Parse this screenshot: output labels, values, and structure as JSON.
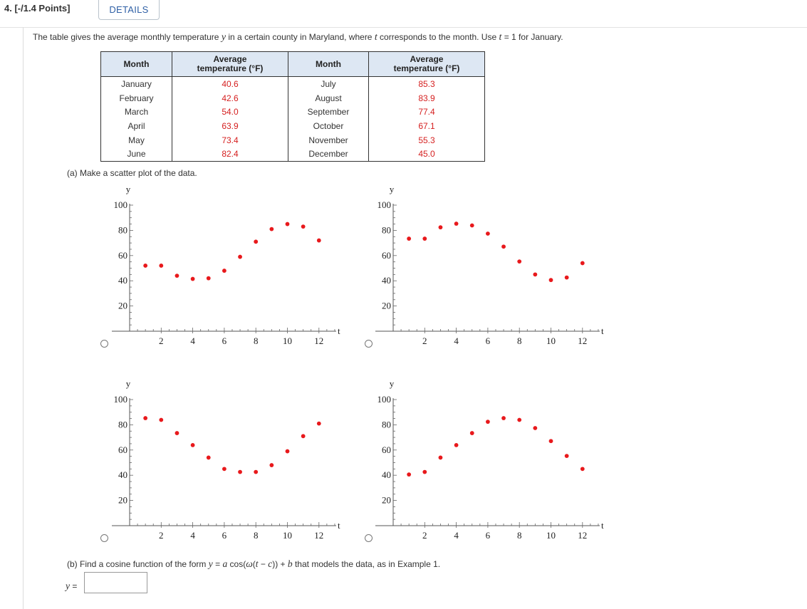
{
  "question": {
    "number_points": "4. [-/1.4 Points]",
    "details_label": "DETAILS",
    "intro_before_y": "The table gives the average monthly temperature ",
    "intro_var_y": "y",
    "intro_middle": " in a certain county in Maryland, where ",
    "intro_var_t": "t",
    "intro_after_t": " corresponds to the month. Use ",
    "intro_t_eq": "t",
    "intro_tail": " = 1  for January."
  },
  "table": {
    "headers": [
      "Month",
      "Average temperature (°F)",
      "Month",
      "Average temperature (°F)"
    ],
    "header_avg_line1": "Average",
    "header_avg_line2": "temperature (°F)",
    "rows": [
      [
        "January",
        "40.6",
        "July",
        "85.3"
      ],
      [
        "February",
        "42.6",
        "August",
        "83.9"
      ],
      [
        "March",
        "54.0",
        "September",
        "77.4"
      ],
      [
        "April",
        "63.9",
        "October",
        "67.1"
      ],
      [
        "May",
        "73.4",
        "November",
        "55.3"
      ],
      [
        "June",
        "82.4",
        "December",
        "45.0"
      ]
    ]
  },
  "part_a": {
    "label": "(a) Make a scatter plot of the data."
  },
  "part_b": {
    "before": "(b) Find a cosine function of the form  ",
    "formula_y": "y",
    "formula_eq": " = ",
    "formula_a": "a",
    "formula_cos": " cos(",
    "formula_w": "ω",
    "formula_open": "(",
    "formula_t": "t",
    "formula_minus": " − ",
    "formula_c": "c",
    "formula_close": ")) + ",
    "formula_b": "b",
    "after": "  that models the data, as in Example 1."
  },
  "answer": {
    "label_var": "y",
    "label_eq": " =",
    "value": ""
  },
  "colors": {
    "point": "#e8191c",
    "accent": "#2e5fa5"
  },
  "chart_data": [
    {
      "type": "scatter",
      "option": "A",
      "xlabel": "t",
      "ylabel": "y",
      "xlim": [
        0,
        13
      ],
      "ylim": [
        0,
        100
      ],
      "xticks": [
        2,
        4,
        6,
        8,
        10,
        12
      ],
      "yticks": [
        20,
        40,
        60,
        80,
        100
      ],
      "series": [
        {
          "x": [
            1,
            2,
            3,
            4,
            5,
            6,
            7,
            8,
            9,
            10,
            11,
            12
          ],
          "y": [
            52,
            52,
            44,
            41.5,
            42,
            48,
            59,
            71,
            81,
            85,
            83,
            72
          ]
        }
      ]
    },
    {
      "type": "scatter",
      "option": "B",
      "xlabel": "t",
      "ylabel": "y",
      "xlim": [
        0,
        13
      ],
      "ylim": [
        0,
        100
      ],
      "xticks": [
        2,
        4,
        6,
        8,
        10,
        12
      ],
      "yticks": [
        20,
        40,
        60,
        80,
        100
      ],
      "series": [
        {
          "x": [
            1,
            2,
            3,
            4,
            5,
            6,
            7,
            8,
            9,
            10,
            11,
            12
          ],
          "y": [
            73.4,
            73.4,
            82.4,
            85.3,
            83.9,
            77.4,
            67.1,
            55.3,
            45,
            40.6,
            42.6,
            54
          ]
        }
      ]
    },
    {
      "type": "scatter",
      "option": "C",
      "xlabel": "t",
      "ylabel": "y",
      "xlim": [
        0,
        13
      ],
      "ylim": [
        0,
        100
      ],
      "xticks": [
        2,
        4,
        6,
        8,
        10,
        12
      ],
      "yticks": [
        20,
        40,
        60,
        80,
        100
      ],
      "series": [
        {
          "x": [
            1,
            2,
            3,
            4,
            5,
            6,
            7,
            8,
            9,
            10,
            11,
            12
          ],
          "y": [
            85.3,
            83.9,
            73.4,
            63.9,
            54,
            45,
            42.6,
            42.6,
            48,
            59,
            71,
            81
          ]
        }
      ]
    },
    {
      "type": "scatter",
      "option": "D",
      "xlabel": "t",
      "ylabel": "y",
      "xlim": [
        0,
        13
      ],
      "ylim": [
        0,
        100
      ],
      "xticks": [
        2,
        4,
        6,
        8,
        10,
        12
      ],
      "yticks": [
        20,
        40,
        60,
        80,
        100
      ],
      "series": [
        {
          "x": [
            1,
            2,
            3,
            4,
            5,
            6,
            7,
            8,
            9,
            10,
            11,
            12
          ],
          "y": [
            40.6,
            42.6,
            54,
            63.9,
            73.4,
            82.4,
            85.3,
            83.9,
            77.4,
            67.1,
            55.3,
            45
          ]
        }
      ]
    }
  ]
}
